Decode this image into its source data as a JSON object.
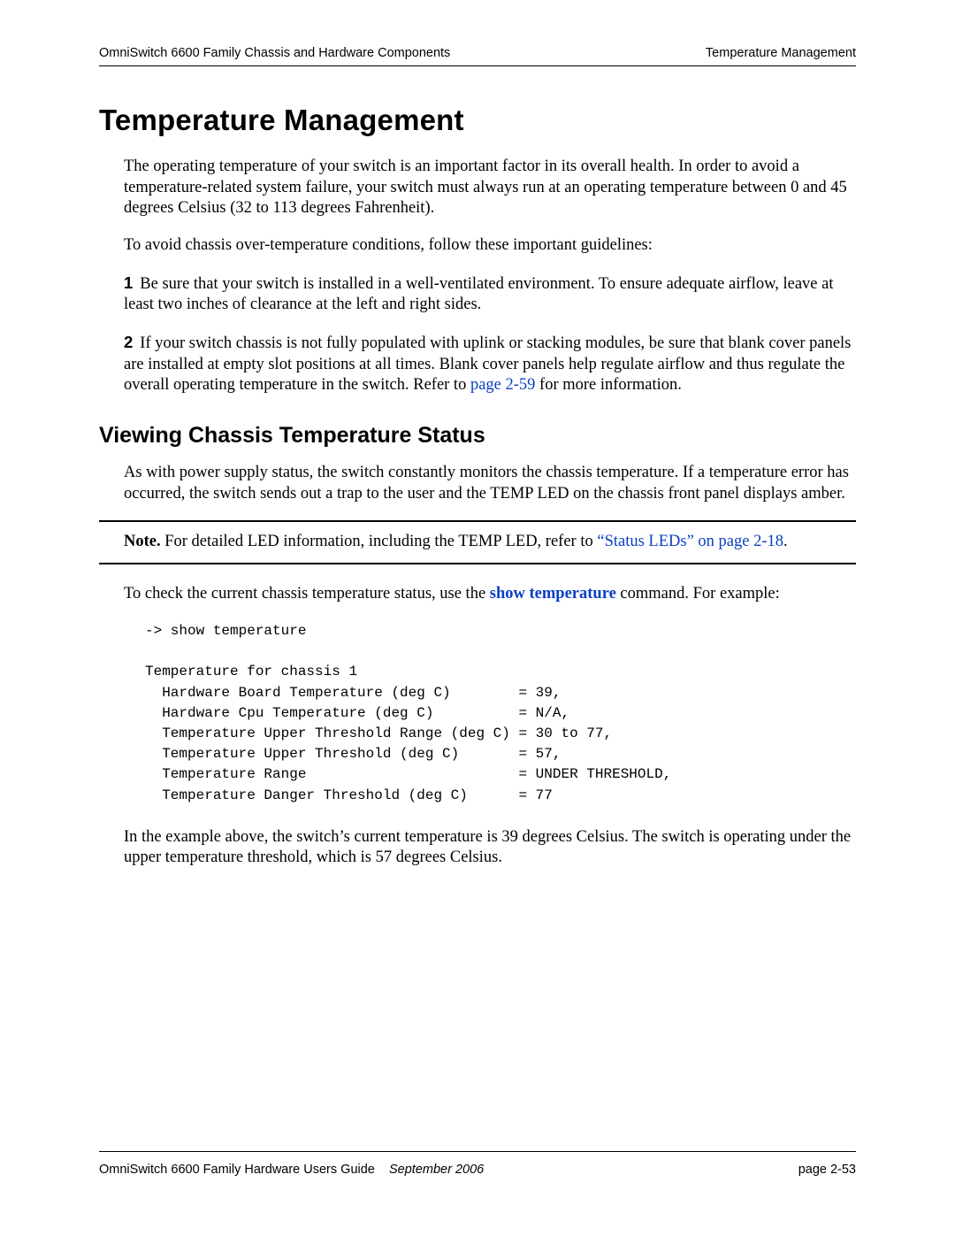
{
  "header": {
    "left": "OmniSwitch 6600 Family Chassis and Hardware Components",
    "right": "Temperature Management"
  },
  "title": "Temperature Management",
  "intro": "The operating temperature of your switch is an important factor in its overall health. In order to avoid a temperature-related system failure, your switch must always run at an operating temperature between 0 and 45 degrees Celsius (32 to 113 degrees Fahrenheit).",
  "guidelines_intro": "To avoid chassis over-temperature conditions, follow these important guidelines:",
  "item1_num": "1",
  "item1_text": "Be sure that your switch is installed in a well-ventilated environment. To ensure adequate airflow, leave at least two inches of clearance at the left and right sides.",
  "item2_num": "2",
  "item2_text_a": "If your switch chassis is not fully populated with uplink or stacking modules, be sure that blank cover panels are installed at empty slot positions at all times. Blank cover panels help regulate airflow and thus regulate the overall operating temperature in the switch. Refer to ",
  "item2_link": "page 2-59",
  "item2_text_b": " for more information.",
  "subtitle": "Viewing Chassis Temperature Status",
  "sub_intro": "As with power supply status, the switch constantly monitors the chassis temperature. If a temperature error has occurred, the switch sends out a trap to the user and the TEMP LED on the chassis front panel displays amber.",
  "note": {
    "label": "Note.",
    "text_a": " For detailed LED information, including the TEMP LED, refer to ",
    "link": "“Status LEDs” on page 2-18",
    "text_b": "."
  },
  "check_text_a": "To check the current chassis temperature status, use the ",
  "check_cmd": "show temperature",
  "check_text_b": " command. For example:",
  "code": "-> show temperature\n\nTemperature for chassis 1\n  Hardware Board Temperature (deg C)        = 39,\n  Hardware Cpu Temperature (deg C)          = N/A,\n  Temperature Upper Threshold Range (deg C) = 30 to 77,\n  Temperature Upper Threshold (deg C)       = 57,\n  Temperature Range                         = UNDER THRESHOLD,\n  Temperature Danger Threshold (deg C)      = 77",
  "closing": "In the example above, the switch’s current temperature is 39 degrees Celsius. The switch is operating under the upper temperature threshold, which is 57 degrees Celsius.",
  "footer": {
    "left": "OmniSwitch 6600 Family Hardware Users Guide",
    "center": "September 2006",
    "right": "page 2-53"
  },
  "colors": {
    "link": "#0a3fc4",
    "text": "#000000",
    "bg": "#ffffff"
  }
}
